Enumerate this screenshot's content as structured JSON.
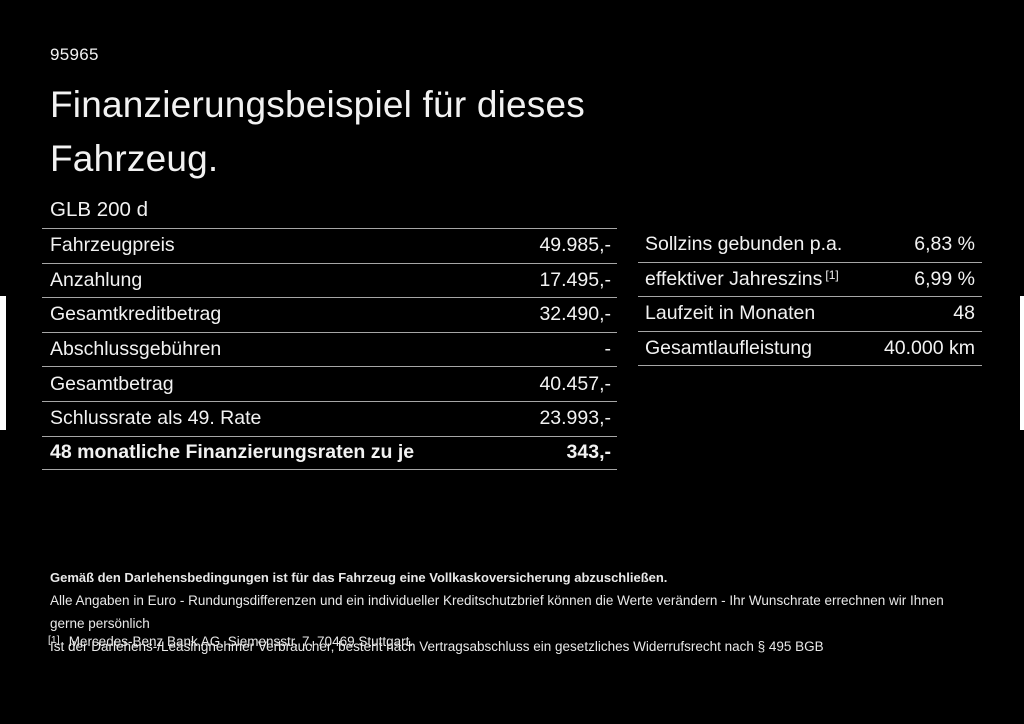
{
  "page": {
    "doc_id": "95965",
    "title_line1": "Finanzierungsbeispiel für dieses",
    "title_line2": "Fahrzeug.",
    "model": "GLB 200 d"
  },
  "left_table": {
    "rows": [
      {
        "label": "Fahrzeugpreis",
        "value": "49.985,-"
      },
      {
        "label": "Anzahlung",
        "value": "17.495,-"
      },
      {
        "label": "Gesamtkreditbetrag",
        "value": "32.490,-"
      },
      {
        "label": "Abschlussgebühren",
        "value": "-"
      },
      {
        "label": "Gesamtbetrag",
        "value": "40.457,-"
      },
      {
        "label": "Schlussrate als 49. Rate",
        "value": "23.993,-"
      },
      {
        "label": "48 monatliche Finanzierungsraten zu je",
        "value": "343,-"
      }
    ]
  },
  "right_table": {
    "rows": [
      {
        "label": "Sollzins gebunden p.a.",
        "sup": "",
        "value": "6,83 %"
      },
      {
        "label": "effektiver Jahreszins",
        "sup": "[1]",
        "value": "6,99 %"
      },
      {
        "label": "Laufzeit in Monaten",
        "sup": "",
        "value": "48"
      },
      {
        "label": "Gesamtlaufleistung",
        "sup": "",
        "value": "40.000 km"
      }
    ]
  },
  "disclaimer": {
    "bold_line": "Gemäß den Darlehensbedingungen ist für das Fahrzeug eine Vollkaskoversicherung abzuschließen.",
    "line2": "Alle Angaben in Euro - Rundungsdifferenzen und ein individueller Kreditschutzbrief können die Werte verändern - Ihr Wunschrate errechnen wir Ihnen gerne persönlich",
    "line3": "Ist der Darlehens-/Leasingnehmer Verbraucher, besteht nach Vertragsabschluss ein gesetzliches Widerrufsrecht nach § 495 BGB",
    "footnote_marker": "[1]",
    "footnote_text": "Mercedes-Benz Bank AG, Siemensstr. 7, 70469 Stuttgart."
  },
  "colors": {
    "background": "#000000",
    "text": "#f2f2f2",
    "divider": "#a6a6a6"
  }
}
